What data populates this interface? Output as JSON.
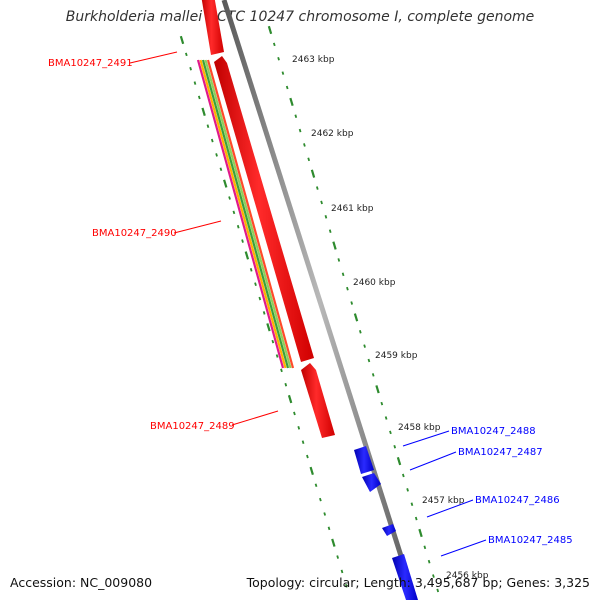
{
  "title": "Burkholderia mallei NCTC 10247 chromosome I, complete genome",
  "accession": "Accession: NC_009080",
  "summary": "Topology: circular; Length: 3,495,687 bp; Genes: 3,325",
  "colors": {
    "forward_gene": "#ff0000",
    "reverse_gene": "#0000ff",
    "tick": "#2e8b2e",
    "backbone": "#808080"
  },
  "tick_labels": [
    {
      "kbp": 2463,
      "label": "2463 kbp"
    },
    {
      "kbp": 2462,
      "label": "2462 kbp"
    },
    {
      "kbp": 2461,
      "label": "2461 kbp"
    },
    {
      "kbp": 2460,
      "label": "2460 kbp"
    },
    {
      "kbp": 2459,
      "label": "2459 kbp"
    },
    {
      "kbp": 2458,
      "label": "2458 kbp"
    },
    {
      "kbp": 2457,
      "label": "2457 kbp"
    },
    {
      "kbp": 2456,
      "label": "2456 kbp"
    }
  ],
  "genes": [
    {
      "name": "BMA10247_2491",
      "strand": "forward"
    },
    {
      "name": "BMA10247_2490",
      "strand": "forward"
    },
    {
      "name": "BMA10247_2489",
      "strand": "forward"
    },
    {
      "name": "BMA10247_2488",
      "strand": "reverse"
    },
    {
      "name": "BMA10247_2487",
      "strand": "reverse"
    },
    {
      "name": "BMA10247_2486",
      "strand": "reverse"
    },
    {
      "name": "BMA10247_2485",
      "strand": "reverse"
    }
  ]
}
